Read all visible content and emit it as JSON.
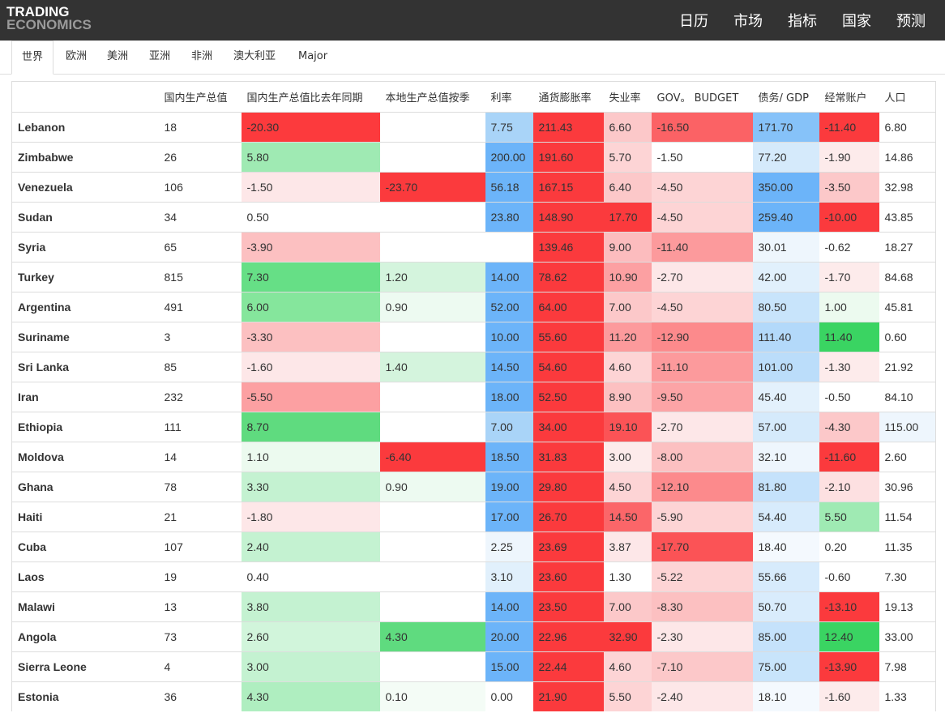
{
  "logo": {
    "line1": "TRADING",
    "line2": "ECONOMICS"
  },
  "topnav": [
    "日历",
    "市场",
    "指标",
    "国家",
    "预测"
  ],
  "tabs": [
    "世界",
    "欧洲",
    "美洲",
    "亚洲",
    "非洲",
    "澳大利亚",
    "Major"
  ],
  "active_tab": "世界",
  "columns": [
    "",
    "国内生产总值",
    "国内生产总值比去年同期",
    "本地生产总值按季",
    "利率",
    "通货膨胀率",
    "失业率",
    "GOV。 BUDGET",
    "债务/ GDP",
    "经常账户",
    "人口"
  ],
  "rows": [
    {
      "country": "Lebanon",
      "gdp": "18",
      "gdp_yoy": "-20.30",
      "gdp_qoq": "",
      "rate": "7.75",
      "inflation": "211.43",
      "unemployment": "6.60",
      "budget": "-16.50",
      "debt": "171.70",
      "current_account": "-11.40",
      "population": "6.80"
    },
    {
      "country": "Zimbabwe",
      "gdp": "26",
      "gdp_yoy": "5.80",
      "gdp_qoq": "",
      "rate": "200.00",
      "inflation": "191.60",
      "unemployment": "5.70",
      "budget": "-1.50",
      "debt": "77.20",
      "current_account": "-1.90",
      "population": "14.86"
    },
    {
      "country": "Venezuela",
      "gdp": "106",
      "gdp_yoy": "-1.50",
      "gdp_qoq": "-23.70",
      "rate": "56.18",
      "inflation": "167.15",
      "unemployment": "6.40",
      "budget": "-4.50",
      "debt": "350.00",
      "current_account": "-3.50",
      "population": "32.98"
    },
    {
      "country": "Sudan",
      "gdp": "34",
      "gdp_yoy": "0.50",
      "gdp_qoq": "",
      "rate": "23.80",
      "inflation": "148.90",
      "unemployment": "17.70",
      "budget": "-4.50",
      "debt": "259.40",
      "current_account": "-10.00",
      "population": "43.85"
    },
    {
      "country": "Syria",
      "gdp": "65",
      "gdp_yoy": "-3.90",
      "gdp_qoq": "",
      "rate": "",
      "inflation": "139.46",
      "unemployment": "9.00",
      "budget": "-11.40",
      "debt": "30.01",
      "current_account": "-0.62",
      "population": "18.27"
    },
    {
      "country": "Turkey",
      "gdp": "815",
      "gdp_yoy": "7.30",
      "gdp_qoq": "1.20",
      "rate": "14.00",
      "inflation": "78.62",
      "unemployment": "10.90",
      "budget": "-2.70",
      "debt": "42.00",
      "current_account": "-1.70",
      "population": "84.68"
    },
    {
      "country": "Argentina",
      "gdp": "491",
      "gdp_yoy": "6.00",
      "gdp_qoq": "0.90",
      "rate": "52.00",
      "inflation": "64.00",
      "unemployment": "7.00",
      "budget": "-4.50",
      "debt": "80.50",
      "current_account": "1.00",
      "population": "45.81"
    },
    {
      "country": "Suriname",
      "gdp": "3",
      "gdp_yoy": "-3.30",
      "gdp_qoq": "",
      "rate": "10.00",
      "inflation": "55.60",
      "unemployment": "11.20",
      "budget": "-12.90",
      "debt": "111.40",
      "current_account": "11.40",
      "population": "0.60"
    },
    {
      "country": "Sri Lanka",
      "gdp": "85",
      "gdp_yoy": "-1.60",
      "gdp_qoq": "1.40",
      "rate": "14.50",
      "inflation": "54.60",
      "unemployment": "4.60",
      "budget": "-11.10",
      "debt": "101.00",
      "current_account": "-1.30",
      "population": "21.92"
    },
    {
      "country": "Iran",
      "gdp": "232",
      "gdp_yoy": "-5.50",
      "gdp_qoq": "",
      "rate": "18.00",
      "inflation": "52.50",
      "unemployment": "8.90",
      "budget": "-9.50",
      "debt": "45.40",
      "current_account": "-0.50",
      "population": "84.10"
    },
    {
      "country": "Ethiopia",
      "gdp": "111",
      "gdp_yoy": "8.70",
      "gdp_qoq": "",
      "rate": "7.00",
      "inflation": "34.00",
      "unemployment": "19.10",
      "budget": "-2.70",
      "debt": "57.00",
      "current_account": "-4.30",
      "population": "115.00"
    },
    {
      "country": "Moldova",
      "gdp": "14",
      "gdp_yoy": "1.10",
      "gdp_qoq": "-6.40",
      "rate": "18.50",
      "inflation": "31.83",
      "unemployment": "3.00",
      "budget": "-8.00",
      "debt": "32.10",
      "current_account": "-11.60",
      "population": "2.60"
    },
    {
      "country": "Ghana",
      "gdp": "78",
      "gdp_yoy": "3.30",
      "gdp_qoq": "0.90",
      "rate": "19.00",
      "inflation": "29.80",
      "unemployment": "4.50",
      "budget": "-12.10",
      "debt": "81.80",
      "current_account": "-2.10",
      "population": "30.96"
    },
    {
      "country": "Haiti",
      "gdp": "21",
      "gdp_yoy": "-1.80",
      "gdp_qoq": "",
      "rate": "17.00",
      "inflation": "26.70",
      "unemployment": "14.50",
      "budget": "-5.90",
      "debt": "54.40",
      "current_account": "5.50",
      "population": "11.54"
    },
    {
      "country": "Cuba",
      "gdp": "107",
      "gdp_yoy": "2.40",
      "gdp_qoq": "",
      "rate": "2.25",
      "inflation": "23.69",
      "unemployment": "3.87",
      "budget": "-17.70",
      "debt": "18.40",
      "current_account": "0.20",
      "population": "11.35"
    },
    {
      "country": "Laos",
      "gdp": "19",
      "gdp_yoy": "0.40",
      "gdp_qoq": "",
      "rate": "3.10",
      "inflation": "23.60",
      "unemployment": "1.30",
      "budget": "-5.22",
      "debt": "55.66",
      "current_account": "-0.60",
      "population": "7.30"
    },
    {
      "country": "Malawi",
      "gdp": "13",
      "gdp_yoy": "3.80",
      "gdp_qoq": "",
      "rate": "14.00",
      "inflation": "23.50",
      "unemployment": "7.00",
      "budget": "-8.30",
      "debt": "50.70",
      "current_account": "-13.10",
      "population": "19.13"
    },
    {
      "country": "Angola",
      "gdp": "73",
      "gdp_yoy": "2.60",
      "gdp_qoq": "4.30",
      "rate": "20.00",
      "inflation": "22.96",
      "unemployment": "32.90",
      "budget": "-2.30",
      "debt": "85.00",
      "current_account": "12.40",
      "population": "33.00"
    },
    {
      "country": "Sierra Leone",
      "gdp": "4",
      "gdp_yoy": "3.00",
      "gdp_qoq": "",
      "rate": "15.00",
      "inflation": "22.44",
      "unemployment": "4.60",
      "budget": "-7.10",
      "debt": "75.00",
      "current_account": "-13.90",
      "population": "7.98"
    },
    {
      "country": "Estonia",
      "gdp": "36",
      "gdp_yoy": "4.30",
      "gdp_qoq": "0.10",
      "rate": "0.00",
      "inflation": "21.90",
      "unemployment": "5.50",
      "budget": "-2.40",
      "debt": "18.10",
      "current_account": "-1.60",
      "population": "1.33"
    }
  ],
  "cell_colors": [
    [
      "",
      "",
      "#fc3a3d",
      "",
      "#a9d4f8",
      "#fb3a3d",
      "#fcc8c9",
      "#fb6265",
      "#86c2f9",
      "#fb3a3d",
      ""
    ],
    [
      "",
      "",
      "#9feab3",
      "",
      "#6cb4f9",
      "#fb3a3d",
      "#fdd4d5",
      "",
      "#d5eafb",
      "#fdebeb",
      ""
    ],
    [
      "",
      "",
      "#fde7e8",
      "#fb3a3d",
      "#6cb4f9",
      "#fb3a3d",
      "#fcc8c9",
      "#fdd4d5",
      "#6cb4f9",
      "#fcc8c9",
      ""
    ],
    [
      "",
      "",
      "",
      "",
      "#6cb4f9",
      "#fb3a3d",
      "#fb3a3d",
      "#fdd4d5",
      "#6cb4f9",
      "#fb3a3d",
      ""
    ],
    [
      "",
      "",
      "#fcc0c1",
      "",
      "",
      "#fb3a3d",
      "#fcbcbe",
      "#fc9a9c",
      "#eef6fd",
      "",
      ""
    ],
    [
      "",
      "",
      "#66df86",
      "#d4f4dd",
      "#6cb4f9",
      "#fb3a3d",
      "#fca0a2",
      "#fde7e8",
      "#e1f0fc",
      "#fdebeb",
      ""
    ],
    [
      "",
      "",
      "#85e69c",
      "#edfaf1",
      "#6cb4f9",
      "#fb3a3d",
      "#fcc8c9",
      "#fdd4d5",
      "#c8e4fb",
      "#ecfaef",
      ""
    ],
    [
      "",
      "",
      "#fcc0c1",
      "",
      "#6cb4f9",
      "#fb3a3d",
      "#fc9a9c",
      "#fc8a8c",
      "#b3d9fa",
      "#3ad462",
      ""
    ],
    [
      "",
      "",
      "#fde7e8",
      "#d4f4dd",
      "#6cb4f9",
      "#fb3a3d",
      "#fdd4d5",
      "#fc9a9c",
      "#bbddfa",
      "#fdebeb",
      ""
    ],
    [
      "",
      "",
      "#fca0a2",
      "",
      "#6cb4f9",
      "#fb3a3d",
      "#fcc0c1",
      "#fca4a6",
      "#e3f1fc",
      "",
      ""
    ],
    [
      "",
      "",
      "#5fdb7f",
      "",
      "#a9d4f8",
      "#fb3a3d",
      "#fb5356",
      "#fde7e8",
      "#d5eafb",
      "#fcc8c9",
      "#eef6fd"
    ],
    [
      "",
      "",
      "#ecfaef",
      "#fb3a3d",
      "#6cb4f9",
      "#fb3a3d",
      "#fdebeb",
      "#fcc0c1",
      "#eef6fd",
      "#fb3a3d",
      ""
    ],
    [
      "",
      "",
      "#c4f2d1",
      "#edfaf1",
      "#6cb4f9",
      "#fb3a3d",
      "#fdd4d5",
      "#fc8a8c",
      "#c5e2fb",
      "#fde0e1",
      ""
    ],
    [
      "",
      "",
      "#fde7e8",
      "",
      "#6cb4f9",
      "#fb3a3d",
      "#fb6669",
      "#fdd4d5",
      "#d7ebfc",
      "#9feab3",
      ""
    ],
    [
      "",
      "",
      "#c4f2d1",
      "",
      "#eef6fd",
      "#fb3a3d",
      "#fde7e8",
      "#fb5356",
      "#f4f9fe",
      "",
      ""
    ],
    [
      "",
      "",
      "",
      "",
      "#e1f0fc",
      "#fb3a3d",
      "",
      "#fdd4d5",
      "#d7ebfc",
      "",
      ""
    ],
    [
      "",
      "",
      "#c4f2d1",
      "",
      "#6cb4f9",
      "#fb3a3d",
      "#fcc8c9",
      "#fcc0c1",
      "#d9ecfc",
      "#fb3a3d",
      ""
    ],
    [
      "",
      "",
      "#d1f5db",
      "#5fdb7f",
      "#6cb4f9",
      "#fb3a3d",
      "#fb3a3d",
      "#fde7e8",
      "#c5e2fb",
      "#3ad462",
      ""
    ],
    [
      "",
      "",
      "#c4f2d1",
      "",
      "#6cb4f9",
      "#fb3a3d",
      "#fdd4d5",
      "#fcc8c9",
      "#c8e4fb",
      "#fb3a3d",
      ""
    ],
    [
      "",
      "",
      "#afeec0",
      "#f4fcf6",
      "",
      "#fb3a3d",
      "#fdd4d5",
      "#fde7e8",
      "#f4f9fe",
      "#fdebeb",
      ""
    ]
  ]
}
